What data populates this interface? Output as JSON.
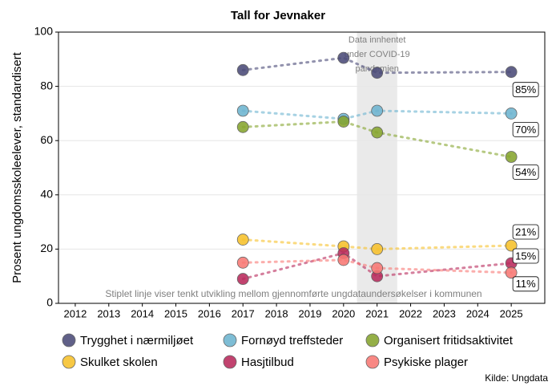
{
  "chart_data": {
    "type": "line",
    "title": "Tall for Jevnaker",
    "y_label": "Prosent ungdomsskoleelever, standardisert",
    "note": "Stiplet linje viser tenkt utvikling mellom gjennomførte ungdataundersøkelser i kommunen",
    "source": "Kilde: Ungdata",
    "annotation": {
      "lines": [
        "Data innhentet",
        "under COVID-19",
        "pandemien"
      ],
      "x": [
        2020.4,
        2021.6
      ]
    },
    "x": [
      2017,
      2020,
      2021,
      2025
    ],
    "xlim": [
      2011.5,
      2026
    ],
    "xticks": [
      2012,
      2013,
      2014,
      2015,
      2016,
      2017,
      2018,
      2019,
      2020,
      2021,
      2022,
      2023,
      2024,
      2025
    ],
    "ylim": [
      0,
      100
    ],
    "yticks": [
      0,
      20,
      40,
      60,
      80,
      100
    ],
    "grid": true,
    "legend": "bottom",
    "series": [
      {
        "name": "Trygghet i nærmiljøet",
        "color": "#4b4b78",
        "values": [
          86,
          90.5,
          85,
          85.3
        ],
        "value_labels": [
          null,
          null,
          null,
          "85%"
        ]
      },
      {
        "name": "Fornøyd treffsteder",
        "color": "#6db4d0",
        "values": [
          71,
          68,
          71,
          70
        ],
        "value_labels": [
          null,
          null,
          null,
          "70%"
        ]
      },
      {
        "name": "Organisert fritidsaktivitet",
        "color": "#86a52e",
        "values": [
          65,
          67,
          63,
          54
        ],
        "value_labels": [
          null,
          null,
          null,
          "54%"
        ]
      },
      {
        "name": "Skulket skolen",
        "color": "#f7c12b",
        "values": [
          23.5,
          21,
          20,
          21.3
        ],
        "value_labels": [
          null,
          null,
          null,
          "21%"
        ]
      },
      {
        "name": "Hasjtilbud",
        "color": "#b92a5c",
        "values": [
          9,
          18.5,
          10,
          14.8
        ],
        "value_labels": [
          null,
          null,
          null,
          "15%"
        ]
      },
      {
        "name": "Psykiske plager",
        "color": "#f87874",
        "values": [
          15,
          16,
          13,
          11.3
        ],
        "value_labels": [
          null,
          null,
          null,
          "11%"
        ]
      }
    ]
  }
}
